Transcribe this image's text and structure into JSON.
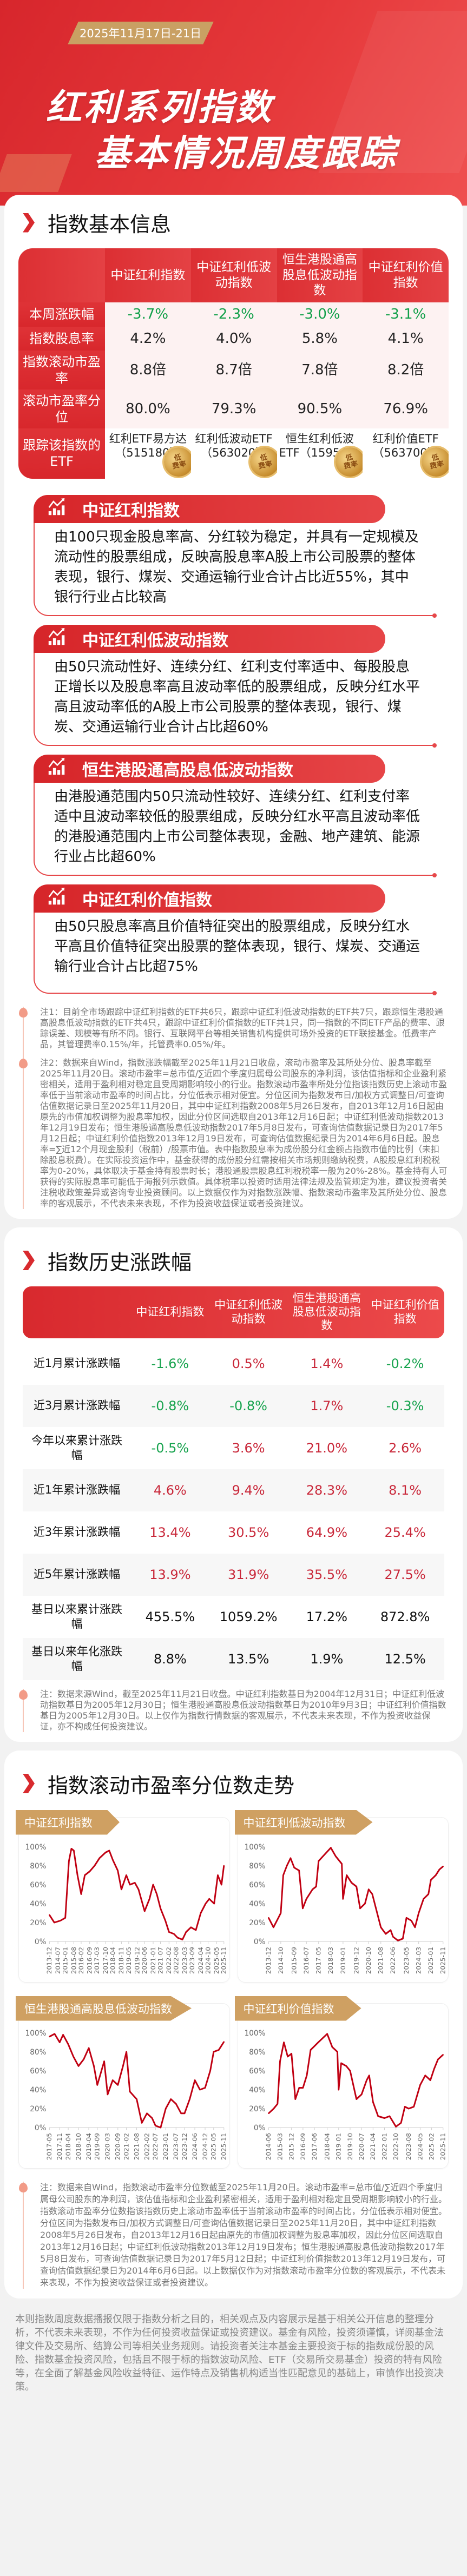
{
  "header": {
    "date": "2025年11月17日-21日",
    "title_line1": "红利系列指数",
    "title_line2": "基本情况周度跟踪"
  },
  "colors": {
    "brand_red": "#d82a2e",
    "gold": "#c9a063",
    "up": "#c9283a",
    "down": "#17a34e"
  },
  "basic": {
    "title": "指数基本信息",
    "columns": [
      "中证红利指数",
      "中证红利低波动指数",
      "恒生港股通高股息低波动指数",
      "中证红利价值指数"
    ],
    "rows": [
      {
        "label": "本周涨跌幅",
        "values": [
          "-3.7%",
          "-2.3%",
          "-3.0%",
          "-3.1%"
        ],
        "color": "down"
      },
      {
        "label": "指数股息率",
        "values": [
          "4.2%",
          "4.0%",
          "5.8%",
          "4.1%"
        ]
      },
      {
        "label": "指数滚动市盈率",
        "values": [
          "8.8倍",
          "8.7倍",
          "7.8倍",
          "8.2倍"
        ]
      },
      {
        "label": "滚动市盈率分位",
        "values": [
          "80.0%",
          "79.3%",
          "90.5%",
          "76.9%"
        ]
      },
      {
        "label": "跟踪该指数的ETF",
        "values": [
          "红利ETF易方达（515180）",
          "红利低波动ETF（563020）",
          "恒生红利低波ETF（159545）",
          "红利价值ETF（563700）"
        ],
        "etf": true
      }
    ],
    "badge_text": "低费率",
    "descriptions": [
      {
        "title": "中证红利指数",
        "text": "由100只现金股息率高、分红较为稳定，并具有一定规模及流动性的股票组成，反映高股息率A股上市公司股票的整体表现，银行、煤炭、交通运输行业合计占比近55%，其中银行行业占比较高"
      },
      {
        "title": "中证红利低波动指数",
        "text": "由50只流动性好、连续分红、红利支付率适中、每股股息正增长以及股息率高且波动率低的股票组成，反映分红水平高且波动率低的A股上市公司股票的整体表现，银行、煤炭、交通运输行业合计占比超60%"
      },
      {
        "title": "恒生港股通高股息低波动指数",
        "text": "由港股通范围内50只流动性较好、连续分红、红利支付率适中且波动率较低的股票组成，反映分红水平高且波动率低的港股通范围内上市公司整体表现，金融、地产建筑、能源行业占比超60%"
      },
      {
        "title": "中证红利价值指数",
        "text": "由50只股息率高且价值特征突出的股票组成，反映分红水平高且价值特征突出股票的整体表现，银行、煤炭、交通运输行业合计占比超75%"
      }
    ],
    "notes": [
      "注1：目前全市场跟踪中证红利指数的ETF共6只，跟踪中证红利低波动指数的ETF共7只，跟踪恒生港股通高股息低波动指数的ETF共4只，跟踪中证红利价值指数的ETF共1只，同一指数的不同ETF产品的费率、跟踪误差、规模等有所不同。银行、互联网平台等相关销售机构提供可场外投资的ETF联接基金。低费率产品，其管理费率0.15%/年，托管费率0.05%/年。",
      "注2：数据来自Wind，指数涨跌幅截至2025年11月21日收盘，滚动市盈率及其所处分位、股息率截至2025年11月20日。滚动市盈率=总市值/∑近四个季度归属母公司股东的净利润，该估值指标和企业盈利紧密相关，适用于盈利相对稳定且受周期影响较小的行业。指数滚动市盈率所处分位指该指数历史上滚动市盈率低于当前滚动市盈率的时间占比，分位低表示相对便宜。分位区间为指数发布日/加权方式调整日/可查询估值数据记录日至2025年11月20日，其中中证红利指数2008年5月26日发布，自2013年12月16日起由原先的市值加权调整为股息率加权，因此分位区间选取自2013年12月16日起；中证红利低波动指数2013年12月19日发布；恒生港股通高股息低波动指数2017年5月8日发布，可查询估值数据记录日为2017年5月12日起；中证红利价值指数2013年12月19日发布，可查询估值数据纪录日为2014年6月6日起。股息率=∑近12个月现金股利（税前）/股票市值。表中指数股息率为成份股分红金额占指数市值的比例（未扣除股息税费）。在实际投资运作中，基金获得的成份股分红需按相关市场规则缴纳税费，A股股息红利税税率为0-20%，具体取决于基金持有股票时长；港股通股票股息红利税税率一般为20%-28%。基金持有人可获得的实际股息率可能低于海报列示数值。具体税率以投资时适用法律法规及监管规定为准，建议投资者关注税收政策差异或咨询专业投资顾问。以上数据仅作为对指数涨跌幅、指数滚动市盈率及其所处分位、股息率的客观展示，不代表未来表现，不作为投资收益保证或者投资建议。"
    ]
  },
  "history": {
    "title": "指数历史涨跌幅",
    "columns": [
      "中证红利指数",
      "中证红利低波动指数",
      "恒生港股通高股息低波动指数",
      "中证红利价值指数"
    ],
    "rows": [
      {
        "label": "近1月累计涨跌幅",
        "values": [
          "-1.6%",
          "0.5%",
          "1.4%",
          "-0.2%"
        ],
        "colors": [
          "down",
          "up",
          "up",
          "down"
        ]
      },
      {
        "label": "近3月累计涨跌幅",
        "values": [
          "-0.8%",
          "-0.8%",
          "1.7%",
          "-0.3%"
        ],
        "colors": [
          "down",
          "down",
          "up",
          "down"
        ]
      },
      {
        "label": "今年以来累计涨跌幅",
        "values": [
          "-0.5%",
          "3.6%",
          "21.0%",
          "2.6%"
        ],
        "colors": [
          "down",
          "up",
          "up",
          "up"
        ]
      },
      {
        "label": "近1年累计涨跌幅",
        "values": [
          "4.6%",
          "9.4%",
          "28.3%",
          "8.1%"
        ],
        "colors": [
          "up",
          "up",
          "up",
          "up"
        ]
      },
      {
        "label": "近3年累计涨跌幅",
        "values": [
          "13.4%",
          "30.5%",
          "64.9%",
          "25.4%"
        ],
        "colors": [
          "up",
          "up",
          "up",
          "up"
        ]
      },
      {
        "label": "近5年累计涨跌幅",
        "values": [
          "13.9%",
          "31.9%",
          "35.5%",
          "27.5%"
        ],
        "colors": [
          "up",
          "up",
          "up",
          "up"
        ]
      },
      {
        "label": "基日以来累计涨跌幅",
        "values": [
          "455.5%",
          "1059.2%",
          "17.2%",
          "872.8%"
        ],
        "colors": [
          "neu",
          "neu",
          "neu",
          "neu"
        ]
      },
      {
        "label": "基日以来年化涨跌幅",
        "values": [
          "8.8%",
          "13.5%",
          "1.9%",
          "12.5%"
        ],
        "colors": [
          "neu",
          "neu",
          "neu",
          "neu"
        ]
      }
    ],
    "note": "注：数据来源Wind，截至2025年11月21日收盘。中证红利指数基日为2004年12月31日；中证红利低波动指数基日为2005年12月30日；恒生港股通高股息低波动指数基日为2010年9月3日；中证红利价值指数基日为2005年12月30日。以上仅作为指数行情数据的客观展示，不代表未来表现，不作为投资收益保证，亦不构成任何投资建议。"
  },
  "pe": {
    "title": "指数滚动市盈率分位数走势",
    "note": "注：数据来自Wind，指数滚动市盈率分位数截至2025年11月20日。滚动市盈率=总市值/∑近四个季度归属母公司股东的净利润，该估值指标和企业盈利紧密相关，适用于盈利相对稳定且受周期影响较小的行业。指数滚动市盈率分位数指该指数历史上滚动市盈率低于当前滚动市盈率的时间占比，分位低表示相对便宜。分位区间为指数发布日/加权方式调整日/可查询估值数据记录日至2025年11月20日，其中中证红利指数2008年5月26日发布，自2013年12月16日起由原先的市值加权调整为股息率加权，因此分位区间选取自2013年12月16日起；中证红利低波动指数2013年12月19日发布；恒生港股通高股息低波动指数2017年5月8日发布，可查询估值数据记录日为2017年5月12日起；中证红利价值指数2013年12月19日发布，可查询估值数据纪录日为2014年6月6日起。以上数据仅作为对指数滚动市盈率分位数的客观展示，不代表未来表现，不作为投资收益保证或者投资建议。"
  },
  "chart_data": [
    {
      "type": "line",
      "title": "中证红利指数",
      "ylim": [
        0,
        100
      ],
      "yticks": [
        "0%",
        "20%",
        "40%",
        "60%",
        "80%",
        "100%"
      ],
      "grid": false,
      "xticks": [
        "2013-12",
        "2014-07",
        "2015-01",
        "2015-08",
        "2016-02",
        "2016-09",
        "2017-03",
        "2017-10",
        "2018-04",
        "2018-11",
        "2019-05",
        "2019-12",
        "2020-06",
        "2021-01",
        "2021-07",
        "2022-02",
        "2022-08",
        "2023-03",
        "2023-09",
        "2024-04",
        "2024-10",
        "2025-05",
        "2025-11"
      ],
      "x": [
        "2013-12",
        "2014-04",
        "2014-09",
        "2015-01",
        "2015-04",
        "2015-06",
        "2015-08",
        "2015-11",
        "2016-02",
        "2016-05",
        "2016-09",
        "2017-01",
        "2017-05",
        "2017-10",
        "2018-01",
        "2018-04",
        "2018-08",
        "2018-11",
        "2019-03",
        "2019-06",
        "2019-10",
        "2020-01",
        "2020-06",
        "2020-10",
        "2021-01",
        "2021-04",
        "2021-07",
        "2021-11",
        "2022-02",
        "2022-06",
        "2022-09",
        "2023-01",
        "2023-04",
        "2023-08",
        "2023-12",
        "2024-04",
        "2024-08",
        "2024-11",
        "2025-03",
        "2025-06",
        "2025-09",
        "2025-11"
      ],
      "values": [
        28,
        20,
        22,
        25,
        85,
        98,
        96,
        70,
        50,
        70,
        74,
        80,
        88,
        94,
        96,
        86,
        75,
        55,
        70,
        60,
        62,
        55,
        32,
        45,
        60,
        50,
        35,
        22,
        10,
        8,
        4,
        2,
        10,
        15,
        12,
        30,
        40,
        45,
        40,
        70,
        60,
        80
      ]
    },
    {
      "type": "line",
      "title": "中证红利低波动指数",
      "ylim": [
        0,
        100
      ],
      "yticks": [
        "0%",
        "20%",
        "40%",
        "60%",
        "80%",
        "100%"
      ],
      "grid": false,
      "xticks": [
        "2013-12",
        "2014-10",
        "2015-09",
        "2016-07",
        "2017-05",
        "2018-03",
        "2019-01",
        "2019-12",
        "2020-10",
        "2021-08",
        "2022-06",
        "2023-05",
        "2024-03",
        "2025-01",
        "2025-11"
      ],
      "x": [
        "2013-12",
        "2014-04",
        "2014-08",
        "2014-10",
        "2014-12",
        "2015-03",
        "2015-06",
        "2015-09",
        "2016-01",
        "2016-04",
        "2016-07",
        "2016-12",
        "2017-03",
        "2017-05",
        "2017-10",
        "2018-03",
        "2018-07",
        "2018-12",
        "2019-01",
        "2019-04",
        "2019-08",
        "2019-12",
        "2020-03",
        "2020-07",
        "2020-10",
        "2021-01",
        "2021-05",
        "2021-08",
        "2021-12",
        "2022-04",
        "2022-06",
        "2022-10",
        "2023-02",
        "2023-05",
        "2023-09",
        "2023-12",
        "2024-03",
        "2024-07",
        "2024-11",
        "2025-01",
        "2025-05",
        "2025-08",
        "2025-11"
      ],
      "values": [
        25,
        15,
        25,
        30,
        70,
        80,
        88,
        78,
        75,
        35,
        45,
        55,
        58,
        85,
        92,
        99,
        90,
        82,
        45,
        70,
        62,
        58,
        35,
        40,
        55,
        50,
        30,
        15,
        8,
        12,
        5,
        1,
        3,
        25,
        22,
        15,
        30,
        45,
        50,
        65,
        70,
        76,
        79.3
      ]
    },
    {
      "type": "line",
      "title": "恒生港股通高股息低波动指数",
      "ylim": [
        0,
        100
      ],
      "yticks": [
        "0%",
        "20%",
        "40%",
        "60%",
        "80%",
        "100%"
      ],
      "grid": false,
      "xticks": [
        "2017-05",
        "2017-11",
        "2018-04",
        "2018-10",
        "2019-04",
        "2019-09",
        "2020-03",
        "2020-09",
        "2021-02",
        "2021-08",
        "2022-02",
        "2022-07",
        "2023-01",
        "2023-07",
        "2023-12",
        "2024-06",
        "2024-12",
        "2025-05",
        "2025-11"
      ],
      "x": [
        "2017-05",
        "2017-08",
        "2017-11",
        "2018-01",
        "2018-04",
        "2018-07",
        "2018-10",
        "2019-01",
        "2019-04",
        "2019-07",
        "2019-09",
        "2020-01",
        "2020-03",
        "2020-06",
        "2020-09",
        "2020-12",
        "2021-02",
        "2021-04",
        "2021-08",
        "2021-11",
        "2022-02",
        "2022-05",
        "2022-07",
        "2022-10",
        "2023-01",
        "2023-04",
        "2023-07",
        "2023-10",
        "2023-12",
        "2024-03",
        "2024-06",
        "2024-09",
        "2024-12",
        "2025-03",
        "2025-05",
        "2025-08",
        "2025-11"
      ],
      "values": [
        96,
        99,
        90,
        98,
        88,
        75,
        65,
        72,
        84,
        65,
        45,
        70,
        35,
        50,
        45,
        65,
        80,
        38,
        30,
        5,
        15,
        10,
        2,
        0,
        20,
        30,
        25,
        15,
        15,
        30,
        50,
        40,
        42,
        60,
        80,
        82,
        90.5
      ]
    },
    {
      "type": "line",
      "title": "中证红利价值指数",
      "ylim": [
        0,
        100
      ],
      "yticks": [
        "0%",
        "20%",
        "40%",
        "60%",
        "80%",
        "100%"
      ],
      "grid": false,
      "xticks": [
        "2014-06",
        "2015-03",
        "2015-12",
        "2016-09",
        "2017-06",
        "2018-04",
        "2019-01",
        "2019-10",
        "2020-07",
        "2021-04",
        "2022-01",
        "2022-10",
        "2023-08",
        "2024-05",
        "2025-02",
        "2025-11"
      ],
      "x": [
        "2014-06",
        "2014-10",
        "2015-01",
        "2015-03",
        "2015-06",
        "2015-09",
        "2015-12",
        "2016-03",
        "2016-06",
        "2016-09",
        "2016-12",
        "2017-03",
        "2017-09",
        "2018-04",
        "2018-08",
        "2018-12",
        "2019-01",
        "2019-03",
        "2019-07",
        "2019-10",
        "2020-03",
        "2020-07",
        "2020-11",
        "2021-01",
        "2021-04",
        "2021-08",
        "2022-01",
        "2022-05",
        "2022-10",
        "2023-02",
        "2023-05",
        "2023-08",
        "2023-12",
        "2024-05",
        "2024-09",
        "2025-01",
        "2025-04",
        "2025-07",
        "2025-11"
      ],
      "values": [
        15,
        20,
        25,
        70,
        90,
        75,
        78,
        30,
        42,
        42,
        55,
        82,
        90,
        99,
        85,
        80,
        40,
        68,
        65,
        60,
        30,
        35,
        50,
        55,
        27,
        12,
        10,
        12,
        1,
        5,
        22,
        20,
        22,
        45,
        55,
        50,
        62,
        72,
        76.9
      ]
    }
  ],
  "footer": {
    "disclaimer": "本则指数周度数据播报仅限于指数分析之目的，相关观点及内容展示是基于相关公开信息的整理分析，不代表未来表现，不作为任何投资收益保证或投资建议。基金有风险，投资须谨慎，详阅基金法律文件及交易所、结算公司等相关业务规则。请投资者关注本基金主要投资于标的指数成份股的风险、指数基金投资风险，包括且不限于标的指数波动风险、ETF（交易所交易基金）投资的特有风险等，在全面了解基金风险收益特征、运作特点及销售机构适当性匹配意见的基础上，审慎作出投资决策。"
  }
}
